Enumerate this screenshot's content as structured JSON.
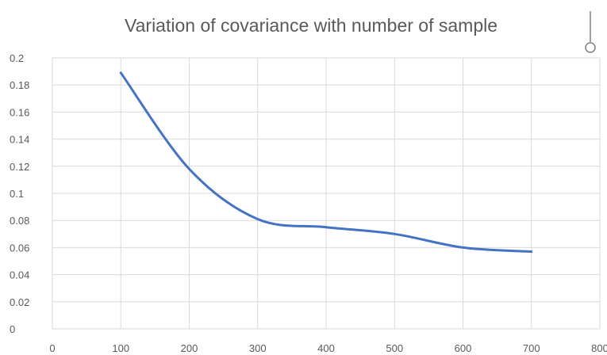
{
  "chart_data": {
    "type": "line",
    "title": "Variation of covariance with number of sample",
    "xlabel": "",
    "ylabel": "",
    "xlim": [
      0,
      800
    ],
    "ylim": [
      0,
      0.2
    ],
    "x_ticks": [
      "0",
      "100",
      "200",
      "300",
      "400",
      "500",
      "600",
      "700",
      "800"
    ],
    "y_ticks": [
      "0",
      "0.02",
      "0.04",
      "0.06",
      "0.08",
      "0.1",
      "0.12",
      "0.14",
      "0.16",
      "0.18",
      "0.2"
    ],
    "grid": true,
    "legend": "none",
    "series": [
      {
        "color": "#4472c4",
        "x": [
          100,
          200,
          300,
          400,
          500,
          600,
          700
        ],
        "y": [
          0.189,
          0.118,
          0.081,
          0.075,
          0.07,
          0.06,
          0.057
        ]
      }
    ]
  },
  "resize_handle": {
    "icon": "circle-handle-icon"
  }
}
